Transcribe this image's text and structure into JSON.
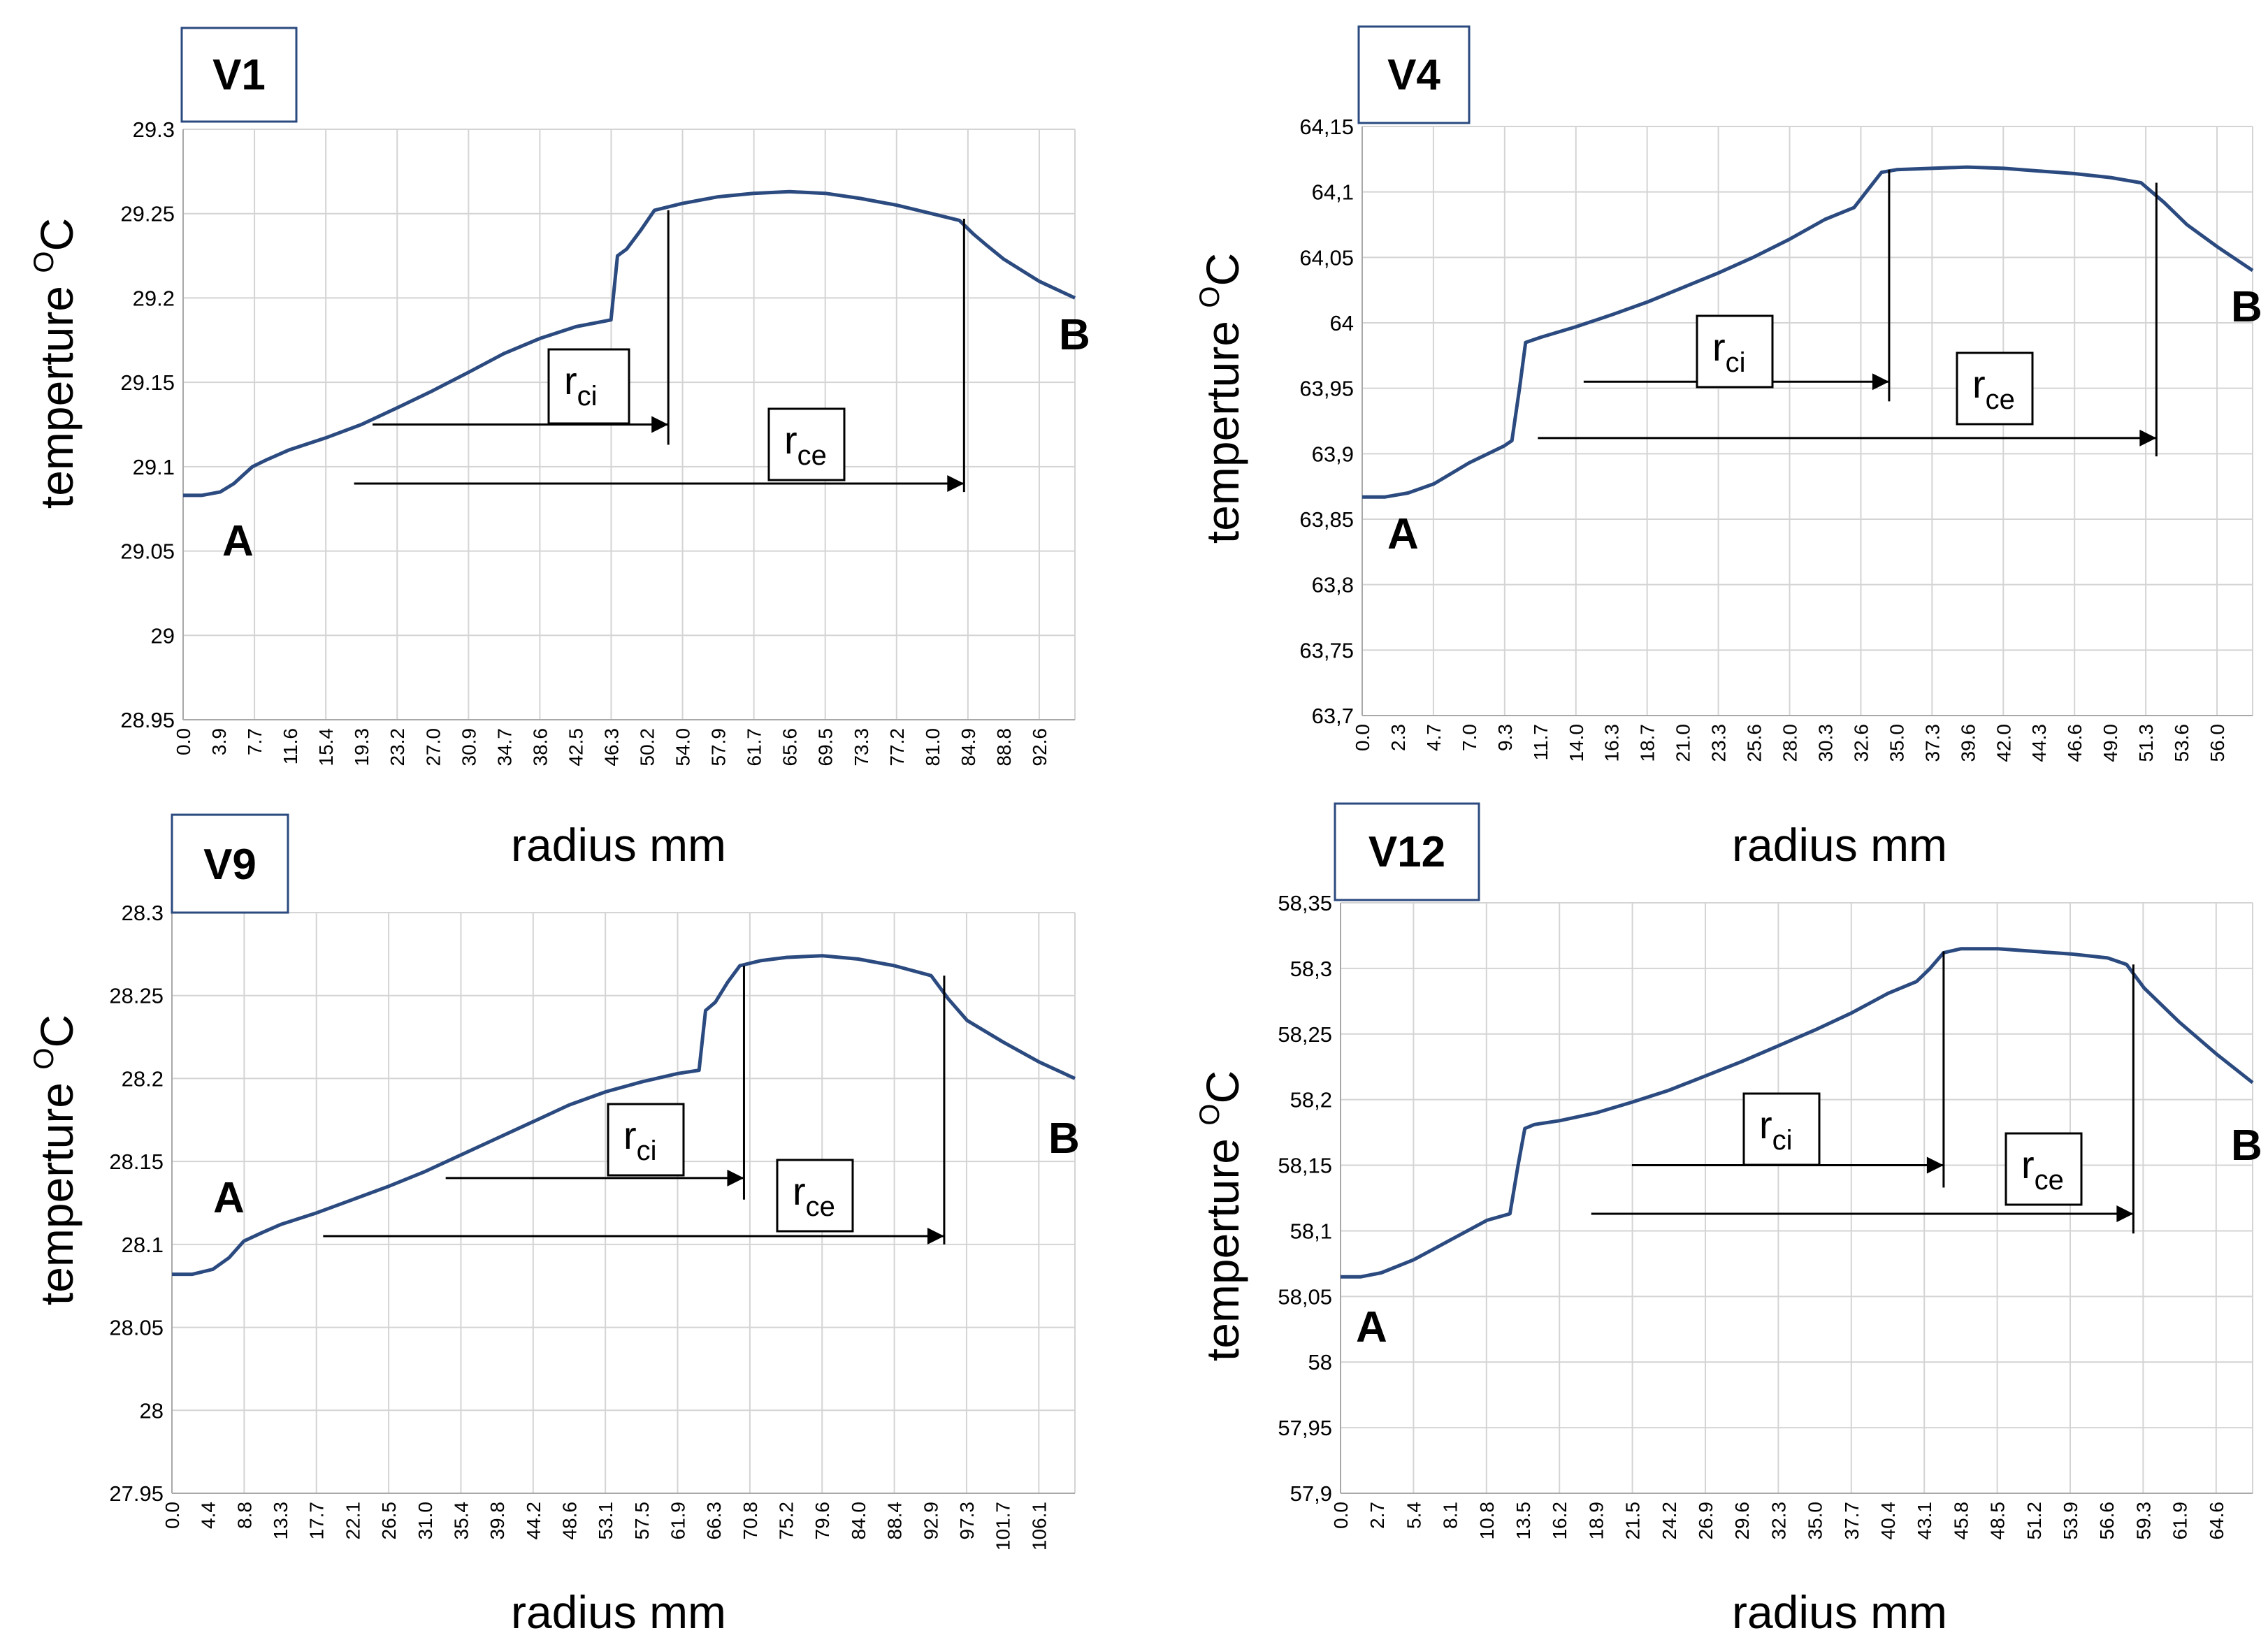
{
  "chart_data": [
    {
      "type": "line",
      "title": "V1",
      "xlabel": "radius mm",
      "ylabel": "temperture",
      "ylabel_unit": "C",
      "ylabel_degree": "O",
      "xlim": [
        0,
        96.5
      ],
      "ylim": [
        28.95,
        29.3
      ],
      "y_ticks": [
        "28.95",
        "29",
        "29.05",
        "29.1",
        "29.15",
        "29.2",
        "29.25",
        "29.3"
      ],
      "x_tick_labels": [
        "0.0",
        "3.9",
        "7.7",
        "11.6",
        "15.4",
        "19.3",
        "23.2",
        "27.0",
        "30.9",
        "34.7",
        "38.6",
        "42.5",
        "46.3",
        "50.2",
        "54.0",
        "57.9",
        "61.7",
        "65.6",
        "69.5",
        "73.3",
        "77.2",
        "81.0",
        "84.9",
        "88.8",
        "92.6"
      ],
      "grid": true,
      "series": [
        {
          "name": "temperature",
          "color": "#2b4a7f",
          "x": [
            0,
            2,
            4,
            5.5,
            6.5,
            7.5,
            9,
            11.5,
            15.4,
            19.3,
            23.2,
            27,
            30.9,
            34.7,
            38.6,
            42.5,
            46.3,
            47,
            48,
            49.5,
            51,
            52.5,
            54,
            57.9,
            61.7,
            65.6,
            69.5,
            73.3,
            77.2,
            81,
            84,
            85.5,
            87,
            88.8,
            92.6,
            96.5
          ],
          "y": [
            29.083,
            29.083,
            29.085,
            29.09,
            29.095,
            29.1,
            29.104,
            29.11,
            29.117,
            29.125,
            29.135,
            29.145,
            29.156,
            29.167,
            29.176,
            29.183,
            29.187,
            29.225,
            29.229,
            29.24,
            29.252,
            29.254,
            29.256,
            29.26,
            29.262,
            29.263,
            29.262,
            29.259,
            29.255,
            29.25,
            29.246,
            29.238,
            29.231,
            29.223,
            29.21,
            29.2
          ]
        }
      ],
      "annotations": {
        "point_a": "A",
        "point_b": "B",
        "rci_label": "r",
        "rci_sub": "ci",
        "rce_label": "r",
        "rce_sub": "ce",
        "rci_arrow": {
          "x_start": 20.5,
          "x_end": 52.5,
          "y": 29.125
        },
        "rce_arrow": {
          "x_start": 18.5,
          "x_end": 84.5,
          "y": 29.09
        },
        "rci_marker": {
          "x": 52.5,
          "y_top": 29.252,
          "y_bottom": 29.113
        },
        "rce_marker": {
          "x": 84.5,
          "y_top": 29.247,
          "y_bottom": 29.085
        }
      }
    },
    {
      "type": "line",
      "title": "V4",
      "xlabel": "radius mm",
      "ylabel": "temperture",
      "ylabel_unit": "C",
      "ylabel_degree": "O",
      "xlim": [
        0,
        58.3
      ],
      "ylim": [
        63.7,
        64.15
      ],
      "y_ticks": [
        "63,7",
        "63,75",
        "63,8",
        "63,85",
        "63,9",
        "63,95",
        "64",
        "64,05",
        "64,1",
        "64,15"
      ],
      "x_tick_labels": [
        "0.0",
        "2.3",
        "4.7",
        "7.0",
        "9.3",
        "11.7",
        "14.0",
        "16.3",
        "18.7",
        "21.0",
        "23.3",
        "25.6",
        "28.0",
        "30.3",
        "32.6",
        "35.0",
        "37.3",
        "39.6",
        "42.0",
        "44.3",
        "46.6",
        "49.0",
        "51.3",
        "53.6",
        "56.0"
      ],
      "grid": true,
      "series": [
        {
          "name": "temperature",
          "color": "#2b4a7f",
          "x": [
            0,
            1.5,
            3,
            4.7,
            7,
            9.3,
            9.8,
            10.3,
            10.7,
            11.2,
            11.7,
            14,
            16.3,
            18.7,
            21,
            23.3,
            25.6,
            28,
            30.3,
            32.2,
            33,
            34,
            35,
            37.3,
            39.6,
            42,
            44.3,
            46.6,
            49,
            51,
            52.5,
            54,
            56,
            58.3
          ],
          "y": [
            63.867,
            63.867,
            63.87,
            63.877,
            63.893,
            63.906,
            63.91,
            63.95,
            63.985,
            63.987,
            63.989,
            63.997,
            64.006,
            64.016,
            64.027,
            64.038,
            64.05,
            64.064,
            64.079,
            64.088,
            64.1,
            64.115,
            64.117,
            64.118,
            64.119,
            64.118,
            64.116,
            64.114,
            64.111,
            64.107,
            64.092,
            64.075,
            64.058,
            64.04
          ]
        }
      ],
      "annotations": {
        "point_a": "A",
        "point_b": "B",
        "rci_label": "r",
        "rci_sub": "ci",
        "rce_label": "r",
        "rce_sub": "ce",
        "rci_arrow": {
          "x_start": 14.5,
          "x_end": 34.5,
          "y": 63.955
        },
        "rce_arrow": {
          "x_start": 11.5,
          "x_end": 52,
          "y": 63.912
        },
        "rci_marker": {
          "x": 34.5,
          "y_top": 64.117,
          "y_bottom": 63.94
        },
        "rce_marker": {
          "x": 52,
          "y_top": 64.107,
          "y_bottom": 63.898
        }
      }
    },
    {
      "type": "line",
      "title": "V9",
      "xlabel": "radius mm",
      "ylabel": "temperture",
      "ylabel_unit": "C",
      "ylabel_degree": "O",
      "xlim": [
        0,
        110.5
      ],
      "ylim": [
        27.95,
        28.3
      ],
      "y_ticks": [
        "27.95",
        "28",
        "28.05",
        "28.1",
        "28.15",
        "28.2",
        "28.25",
        "28.3"
      ],
      "x_tick_labels": [
        "0.0",
        "4.4",
        "8.8",
        "13.3",
        "17.7",
        "22.1",
        "26.5",
        "31.0",
        "35.4",
        "39.8",
        "44.2",
        "48.6",
        "53.1",
        "57.5",
        "61.9",
        "66.3",
        "70.8",
        "75.2",
        "79.6",
        "84.0",
        "88.4",
        "92.9",
        "97.3",
        "101.7",
        "106.1"
      ],
      "grid": true,
      "series": [
        {
          "name": "temperature",
          "color": "#2b4a7f",
          "x": [
            0,
            2.5,
            5,
            7,
            8.8,
            11,
            13.3,
            17.7,
            22.1,
            26.5,
            31,
            35.4,
            39.8,
            44.2,
            48.6,
            53.1,
            57.5,
            61.9,
            64.5,
            65.3,
            66.5,
            68,
            69.5,
            72,
            75.2,
            79.6,
            84,
            88.4,
            92.9,
            95,
            97.3,
            101.7,
            106.1,
            110.5
          ],
          "y": [
            28.082,
            28.082,
            28.085,
            28.092,
            28.102,
            28.107,
            28.112,
            28.119,
            28.127,
            28.135,
            28.144,
            28.154,
            28.164,
            28.174,
            28.184,
            28.192,
            28.198,
            28.203,
            28.205,
            28.241,
            28.246,
            28.258,
            28.268,
            28.271,
            28.273,
            28.274,
            28.272,
            28.268,
            28.262,
            28.248,
            28.235,
            28.222,
            28.21,
            28.2
          ]
        }
      ],
      "annotations": {
        "point_a": "A",
        "point_b": "B",
        "rci_label": "r",
        "rci_sub": "ci",
        "rce_label": "r",
        "rce_sub": "ce",
        "rci_arrow": {
          "x_start": 33.5,
          "x_end": 70,
          "y": 28.14
        },
        "rce_arrow": {
          "x_start": 18.5,
          "x_end": 94.5,
          "y": 28.105
        },
        "rci_marker": {
          "x": 70,
          "y_top": 28.268,
          "y_bottom": 28.127
        },
        "rce_marker": {
          "x": 94.5,
          "y_top": 28.262,
          "y_bottom": 28.1
        }
      }
    },
    {
      "type": "line",
      "title": "V12",
      "xlabel": "radius mm",
      "ylabel": "temperture",
      "ylabel_unit": "C",
      "ylabel_degree": "O",
      "xlim": [
        0,
        67.3
      ],
      "ylim": [
        57.9,
        58.35
      ],
      "y_ticks": [
        "57,9",
        "57,95",
        "58",
        "58,05",
        "58,1",
        "58,15",
        "58,2",
        "58,25",
        "58,3",
        "58,35"
      ],
      "x_tick_labels": [
        "0.0",
        "2.7",
        "5.4",
        "8.1",
        "10.8",
        "13.5",
        "16.2",
        "18.9",
        "21.5",
        "24.2",
        "26.9",
        "29.6",
        "32.3",
        "35.0",
        "37.7",
        "40.4",
        "43.1",
        "45.8",
        "48.5",
        "51.2",
        "53.9",
        "56.6",
        "59.3",
        "61.9",
        "64.6"
      ],
      "grid": true,
      "series": [
        {
          "name": "temperature",
          "color": "#2b4a7f",
          "x": [
            0,
            1.5,
            3,
            5.4,
            8.1,
            10.8,
            12.5,
            13.1,
            13.6,
            14.3,
            16.2,
            18.9,
            21.5,
            24.2,
            26.9,
            29.6,
            32.3,
            35,
            37.7,
            40.4,
            42.5,
            43.5,
            44.5,
            45.8,
            48.5,
            51.2,
            53.9,
            56.6,
            58,
            59.3,
            61.9,
            64.6,
            67.3
          ],
          "y": [
            58.065,
            58.065,
            58.068,
            58.078,
            58.093,
            58.108,
            58.113,
            58.15,
            58.178,
            58.181,
            58.184,
            58.19,
            58.198,
            58.207,
            58.218,
            58.229,
            58.241,
            58.253,
            58.266,
            58.281,
            58.29,
            58.3,
            58.312,
            58.315,
            58.315,
            58.313,
            58.311,
            58.308,
            58.303,
            58.285,
            58.259,
            58.235,
            58.213
          ]
        }
      ],
      "annotations": {
        "point_a": "A",
        "point_b": "B",
        "rci_label": "r",
        "rci_sub": "ci",
        "rce_label": "r",
        "rce_sub": "ce",
        "rci_arrow": {
          "x_start": 21.5,
          "x_end": 44.5,
          "y": 58.15
        },
        "rce_arrow": {
          "x_start": 18.5,
          "x_end": 58.5,
          "y": 58.113
        },
        "rci_marker": {
          "x": 44.5,
          "y_top": 58.313,
          "y_bottom": 58.133
        },
        "rce_marker": {
          "x": 58.5,
          "y_top": 58.303,
          "y_bottom": 58.098
        }
      }
    }
  ]
}
